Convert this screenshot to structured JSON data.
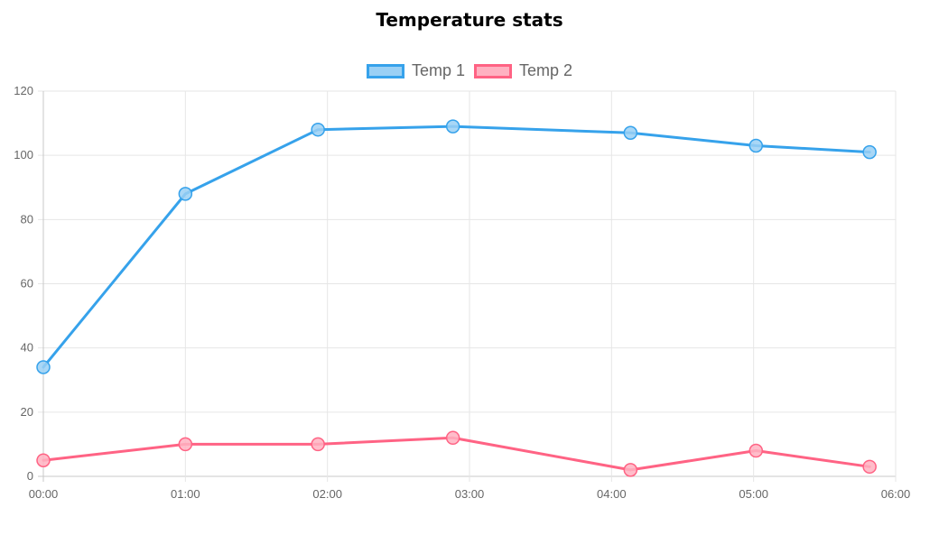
{
  "chart_data": {
    "type": "line",
    "title": "Temperature stats",
    "xlabel": "",
    "ylabel": "",
    "x_ticks": [
      "00:00",
      "01:00",
      "02:00",
      "03:00",
      "04:00",
      "05:00",
      "06:00"
    ],
    "xlim": [
      0,
      360
    ],
    "ylim": [
      0,
      120
    ],
    "y_ticks": [
      0,
      20,
      40,
      60,
      80,
      100,
      120
    ],
    "grid": true,
    "legend_position": "top-center",
    "series": [
      {
        "name": "Temp 1",
        "color": "#36a2eb",
        "fill": "#9ad0f5",
        "points": [
          {
            "t": "00:00",
            "y": 34
          },
          {
            "t": "01:00",
            "y": 88
          },
          {
            "t": "01:56",
            "y": 108
          },
          {
            "t": "02:53",
            "y": 109
          },
          {
            "t": "04:08",
            "y": 107
          },
          {
            "t": "05:01",
            "y": 103
          },
          {
            "t": "05:49",
            "y": 101
          }
        ]
      },
      {
        "name": "Temp 2",
        "color": "#ff6384",
        "fill": "#ffb1c1",
        "points": [
          {
            "t": "00:00",
            "y": 5
          },
          {
            "t": "01:00",
            "y": 10
          },
          {
            "t": "01:56",
            "y": 10
          },
          {
            "t": "02:53",
            "y": 12
          },
          {
            "t": "04:08",
            "y": 2
          },
          {
            "t": "05:01",
            "y": 8
          },
          {
            "t": "05:49",
            "y": 3
          }
        ]
      }
    ]
  }
}
